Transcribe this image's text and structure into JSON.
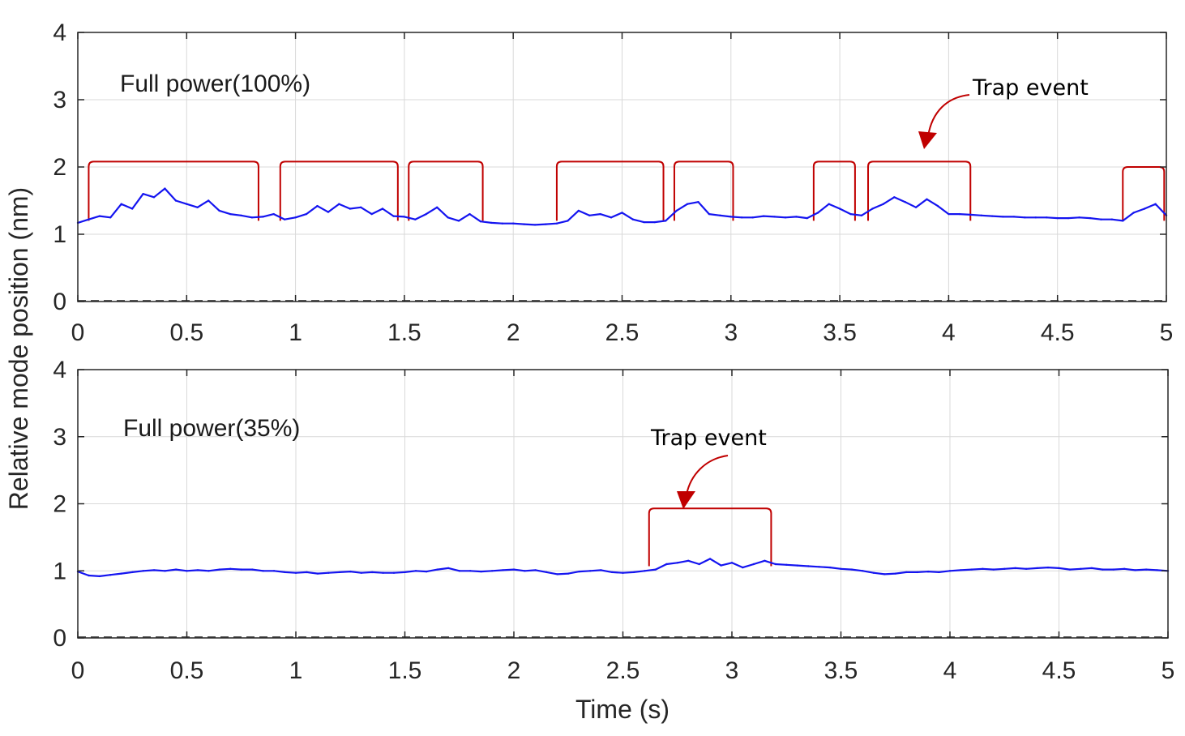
{
  "colors": {
    "signal": "#1414f0",
    "trap": "#c00000",
    "axis": "#262626",
    "grid": "#d9d9d9"
  },
  "shared": {
    "ylabel": "Relative mode position (nm)",
    "xlabel": "Time (s)"
  },
  "chart_data": [
    {
      "type": "line",
      "panel_label": "Full power(100%)",
      "annotation": "Trap event",
      "xlabel": "",
      "ylabel": "Relative mode position (nm)",
      "xlim": [
        0,
        5
      ],
      "ylim": [
        0,
        4
      ],
      "xticks": [
        0,
        0.5,
        1,
        1.5,
        2,
        2.5,
        3,
        3.5,
        4,
        4.5,
        5
      ],
      "xtick_labels": [
        "0",
        "0.5",
        "1",
        "1.5",
        "2",
        "2.5",
        "3",
        "3.5",
        "4",
        "4.5",
        "5"
      ],
      "yticks": [
        0,
        1,
        2,
        3,
        4
      ],
      "ytick_labels": [
        "0",
        "1",
        "2",
        "3",
        "4"
      ],
      "grid": true,
      "series": [
        {
          "name": "Mode position",
          "x": [
            0,
            0.05,
            0.1,
            0.15,
            0.2,
            0.25,
            0.3,
            0.35,
            0.4,
            0.45,
            0.5,
            0.55,
            0.6,
            0.65,
            0.7,
            0.75,
            0.8,
            0.85,
            0.9,
            0.95,
            1.0,
            1.05,
            1.1,
            1.15,
            1.2,
            1.25,
            1.3,
            1.35,
            1.4,
            1.45,
            1.5,
            1.55,
            1.6,
            1.65,
            1.7,
            1.75,
            1.8,
            1.85,
            1.9,
            1.95,
            2.0,
            2.05,
            2.1,
            2.15,
            2.2,
            2.25,
            2.3,
            2.35,
            2.4,
            2.45,
            2.5,
            2.55,
            2.6,
            2.65,
            2.7,
            2.75,
            2.8,
            2.85,
            2.9,
            2.95,
            3.0,
            3.05,
            3.1,
            3.15,
            3.2,
            3.25,
            3.3,
            3.35,
            3.4,
            3.45,
            3.5,
            3.55,
            3.6,
            3.65,
            3.7,
            3.75,
            3.8,
            3.85,
            3.9,
            3.95,
            4.0,
            4.05,
            4.1,
            4.15,
            4.2,
            4.25,
            4.3,
            4.35,
            4.4,
            4.45,
            4.5,
            4.55,
            4.6,
            4.65,
            4.7,
            4.75,
            4.8,
            4.85,
            4.9,
            4.95,
            5.0
          ],
          "y": [
            1.17,
            1.22,
            1.27,
            1.25,
            1.45,
            1.38,
            1.6,
            1.55,
            1.68,
            1.5,
            1.45,
            1.4,
            1.5,
            1.35,
            1.3,
            1.28,
            1.25,
            1.26,
            1.3,
            1.22,
            1.25,
            1.3,
            1.42,
            1.33,
            1.45,
            1.38,
            1.4,
            1.3,
            1.38,
            1.27,
            1.26,
            1.22,
            1.3,
            1.4,
            1.25,
            1.2,
            1.3,
            1.19,
            1.17,
            1.16,
            1.16,
            1.15,
            1.14,
            1.15,
            1.16,
            1.2,
            1.35,
            1.28,
            1.3,
            1.25,
            1.32,
            1.22,
            1.18,
            1.18,
            1.2,
            1.35,
            1.45,
            1.48,
            1.3,
            1.28,
            1.26,
            1.25,
            1.25,
            1.27,
            1.26,
            1.25,
            1.26,
            1.24,
            1.32,
            1.45,
            1.38,
            1.3,
            1.28,
            1.38,
            1.45,
            1.55,
            1.48,
            1.4,
            1.52,
            1.42,
            1.3,
            1.3,
            1.29,
            1.28,
            1.27,
            1.26,
            1.26,
            1.25,
            1.25,
            1.25,
            1.24,
            1.24,
            1.25,
            1.24,
            1.22,
            1.22,
            1.2,
            1.32,
            1.38,
            1.45,
            1.28
          ]
        }
      ],
      "trap_events": [
        [
          0.05,
          0.83
        ],
        [
          0.93,
          1.47
        ],
        [
          1.52,
          1.86
        ],
        [
          2.2,
          2.69
        ],
        [
          2.74,
          3.01
        ],
        [
          3.38,
          3.57
        ],
        [
          3.63,
          4.1
        ],
        [
          4.8,
          4.99
        ]
      ],
      "trap_level": [
        2.08,
        2.08,
        2.08,
        2.08,
        2.08,
        2.08,
        2.08,
        2.0
      ]
    },
    {
      "type": "line",
      "panel_label": "Full power(35%)",
      "annotation": "Trap event",
      "xlabel": "Time (s)",
      "ylabel": "Relative mode position (nm)",
      "xlim": [
        0,
        5
      ],
      "ylim": [
        0,
        4
      ],
      "xticks": [
        0,
        0.5,
        1,
        1.5,
        2,
        2.5,
        3,
        3.5,
        4,
        4.5,
        5
      ],
      "xtick_labels": [
        "0",
        "0.5",
        "1",
        "1.5",
        "2",
        "2.5",
        "3",
        "3.5",
        "4",
        "4.5",
        "5"
      ],
      "yticks": [
        0,
        1,
        2,
        3,
        4
      ],
      "ytick_labels": [
        "0",
        "1",
        "2",
        "3",
        "4"
      ],
      "grid": true,
      "series": [
        {
          "name": "Mode position",
          "x": [
            0,
            0.05,
            0.1,
            0.15,
            0.2,
            0.25,
            0.3,
            0.35,
            0.4,
            0.45,
            0.5,
            0.55,
            0.6,
            0.65,
            0.7,
            0.75,
            0.8,
            0.85,
            0.9,
            0.95,
            1.0,
            1.05,
            1.1,
            1.15,
            1.2,
            1.25,
            1.3,
            1.35,
            1.4,
            1.45,
            1.5,
            1.55,
            1.6,
            1.65,
            1.7,
            1.75,
            1.8,
            1.85,
            1.9,
            1.95,
            2.0,
            2.05,
            2.1,
            2.15,
            2.2,
            2.25,
            2.3,
            2.35,
            2.4,
            2.45,
            2.5,
            2.55,
            2.6,
            2.65,
            2.7,
            2.75,
            2.8,
            2.85,
            2.9,
            2.95,
            3.0,
            3.05,
            3.1,
            3.15,
            3.2,
            3.25,
            3.3,
            3.35,
            3.4,
            3.45,
            3.5,
            3.55,
            3.6,
            3.65,
            3.7,
            3.75,
            3.8,
            3.85,
            3.9,
            3.95,
            4.0,
            4.05,
            4.1,
            4.15,
            4.2,
            4.25,
            4.3,
            4.35,
            4.4,
            4.45,
            4.5,
            4.55,
            4.6,
            4.65,
            4.7,
            4.75,
            4.8,
            4.85,
            4.9,
            4.95,
            5.0
          ],
          "y": [
            0.99,
            0.93,
            0.92,
            0.94,
            0.96,
            0.98,
            1.0,
            1.01,
            1.0,
            1.02,
            1.0,
            1.01,
            1.0,
            1.02,
            1.03,
            1.02,
            1.02,
            1.0,
            1.0,
            0.98,
            0.97,
            0.98,
            0.96,
            0.97,
            0.98,
            0.99,
            0.97,
            0.98,
            0.97,
            0.97,
            0.98,
            1.0,
            0.99,
            1.02,
            1.04,
            1.0,
            1.0,
            0.99,
            1.0,
            1.01,
            1.02,
            1.0,
            1.01,
            0.98,
            0.95,
            0.96,
            0.99,
            1.0,
            1.01,
            0.98,
            0.97,
            0.98,
            1.0,
            1.02,
            1.1,
            1.12,
            1.15,
            1.1,
            1.18,
            1.08,
            1.12,
            1.05,
            1.1,
            1.15,
            1.1,
            1.09,
            1.08,
            1.07,
            1.06,
            1.05,
            1.03,
            1.02,
            1.0,
            0.97,
            0.95,
            0.96,
            0.98,
            0.98,
            0.99,
            0.98,
            1.0,
            1.01,
            1.02,
            1.03,
            1.02,
            1.03,
            1.04,
            1.03,
            1.04,
            1.05,
            1.04,
            1.02,
            1.03,
            1.04,
            1.02,
            1.02,
            1.03,
            1.01,
            1.02,
            1.01,
            1.0
          ]
        }
      ],
      "trap_events": [
        [
          2.62,
          3.18
        ]
      ],
      "trap_level": [
        1.93
      ]
    }
  ]
}
